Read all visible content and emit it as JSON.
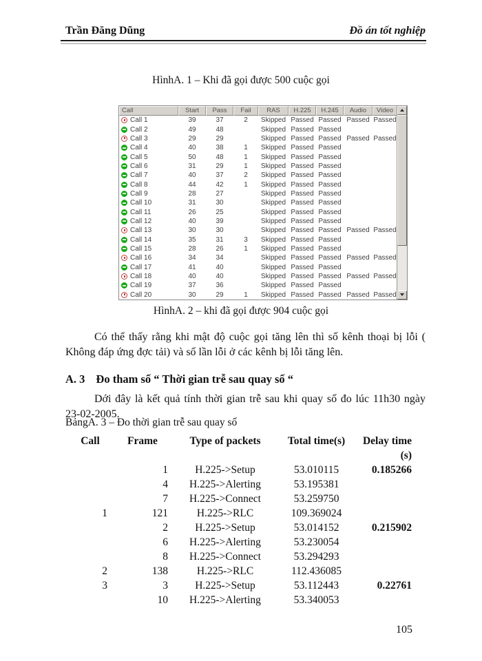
{
  "header": {
    "author": "Trần Đăng Dũng",
    "title": "Đồ án tốt nghiệp"
  },
  "figure1_caption": "HìnhA. 1 – Khi đã gọi được 500 cuộc gọi",
  "figure2_caption": "HìnhA. 2 – khi đã gọi được 904 cuộc gọi",
  "call_table": {
    "columns": [
      "Call",
      "Start",
      "Pass",
      "Fail",
      "RAS",
      "H.225",
      "H.245",
      "Audio",
      "Video"
    ],
    "rows": [
      {
        "icon": "red-timer",
        "call": "Call 1",
        "start": "39",
        "pass": "37",
        "fail": "2",
        "ras": "Skipped",
        "h225": "Passed",
        "h245": "Passed",
        "audio": "Passed",
        "video": "Passed"
      },
      {
        "icon": "green-status",
        "call": "Call 2",
        "start": "49",
        "pass": "48",
        "fail": "",
        "ras": "Skipped",
        "h225": "Passed",
        "h245": "Passed",
        "audio": "",
        "video": ""
      },
      {
        "icon": "red-timer",
        "call": "Call 3",
        "start": "29",
        "pass": "29",
        "fail": "",
        "ras": "Skipped",
        "h225": "Passed",
        "h245": "Passed",
        "audio": "Passed",
        "video": "Passed"
      },
      {
        "icon": "green-status",
        "call": "Call 4",
        "start": "40",
        "pass": "38",
        "fail": "1",
        "ras": "Skipped",
        "h225": "Passed",
        "h245": "Passed",
        "audio": "",
        "video": ""
      },
      {
        "icon": "green-status",
        "call": "Call 5",
        "start": "50",
        "pass": "48",
        "fail": "1",
        "ras": "Skipped",
        "h225": "Passed",
        "h245": "Passed",
        "audio": "",
        "video": ""
      },
      {
        "icon": "green-status",
        "call": "Call 6",
        "start": "31",
        "pass": "29",
        "fail": "1",
        "ras": "Skipped",
        "h225": "Passed",
        "h245": "Passed",
        "audio": "",
        "video": ""
      },
      {
        "icon": "green-status",
        "call": "Call 7",
        "start": "40",
        "pass": "37",
        "fail": "2",
        "ras": "Skipped",
        "h225": "Passed",
        "h245": "Passed",
        "audio": "",
        "video": ""
      },
      {
        "icon": "green-status",
        "call": "Call 8",
        "start": "44",
        "pass": "42",
        "fail": "1",
        "ras": "Skipped",
        "h225": "Passed",
        "h245": "Passed",
        "audio": "",
        "video": ""
      },
      {
        "icon": "green-status",
        "call": "Call 9",
        "start": "28",
        "pass": "27",
        "fail": "",
        "ras": "Skipped",
        "h225": "Passed",
        "h245": "Passed",
        "audio": "",
        "video": ""
      },
      {
        "icon": "green-status",
        "call": "Call 10",
        "start": "31",
        "pass": "30",
        "fail": "",
        "ras": "Skipped",
        "h225": "Passed",
        "h245": "Passed",
        "audio": "",
        "video": ""
      },
      {
        "icon": "green-status",
        "call": "Call 11",
        "start": "26",
        "pass": "25",
        "fail": "",
        "ras": "Skipped",
        "h225": "Passed",
        "h245": "Passed",
        "audio": "",
        "video": ""
      },
      {
        "icon": "green-status",
        "call": "Call 12",
        "start": "40",
        "pass": "39",
        "fail": "",
        "ras": "Skipped",
        "h225": "Passed",
        "h245": "Passed",
        "audio": "",
        "video": ""
      },
      {
        "icon": "red-timer",
        "call": "Call 13",
        "start": "30",
        "pass": "30",
        "fail": "",
        "ras": "Skipped",
        "h225": "Passed",
        "h245": "Passed",
        "audio": "Passed",
        "video": "Passed"
      },
      {
        "icon": "green-status",
        "call": "Call 14",
        "start": "35",
        "pass": "31",
        "fail": "3",
        "ras": "Skipped",
        "h225": "Passed",
        "h245": "Passed",
        "audio": "",
        "video": ""
      },
      {
        "icon": "green-status",
        "call": "Call 15",
        "start": "28",
        "pass": "26",
        "fail": "1",
        "ras": "Skipped",
        "h225": "Passed",
        "h245": "Passed",
        "audio": "",
        "video": ""
      },
      {
        "icon": "red-timer",
        "call": "Call 16",
        "start": "34",
        "pass": "34",
        "fail": "",
        "ras": "Skipped",
        "h225": "Passed",
        "h245": "Passed",
        "audio": "Passed",
        "video": "Passed"
      },
      {
        "icon": "green-status",
        "call": "Call 17",
        "start": "41",
        "pass": "40",
        "fail": "",
        "ras": "Skipped",
        "h225": "Passed",
        "h245": "Passed",
        "audio": "",
        "video": ""
      },
      {
        "icon": "red-timer",
        "call": "Call 18",
        "start": "40",
        "pass": "40",
        "fail": "",
        "ras": "Skipped",
        "h225": "Passed",
        "h245": "Passed",
        "audio": "Passed",
        "video": "Passed"
      },
      {
        "icon": "green-status",
        "call": "Call 19",
        "start": "37",
        "pass": "36",
        "fail": "",
        "ras": "Skipped",
        "h225": "Passed",
        "h245": "Passed",
        "audio": "",
        "video": ""
      },
      {
        "icon": "red-timer",
        "call": "Call 20",
        "start": "30",
        "pass": "29",
        "fail": "1",
        "ras": "Skipped",
        "h225": "Passed",
        "h245": "Passed",
        "audio": "Passed",
        "video": "Passed"
      }
    ]
  },
  "paragraph1": {
    "line1": "Có thể thấy rằng khi mật độ cuộc gọi tăng lên thì số kênh thoại bị lỗi (",
    "line2": "Không đáp ứng đợc  tải) và số lần lỗi ở các kênh bị lỗi tăng lên."
  },
  "section_a3": {
    "number": "A. 3",
    "title": "Đo tham số “ Thời gian trễ sau quay số “",
    "para_line1": "Dới  đây là kết quả tính thời gian trễ sau khi quay số đo lúc 11h30 ngày",
    "para_line2": "23-02-2005.",
    "table_caption": "BảngA. 3 – Đo thời gian trễ sau quay số"
  },
  "delay_table": {
    "columns": [
      "Call",
      "Frame",
      "Type of packets",
      "Total time(s)",
      "Delay time (s)"
    ],
    "rows": [
      {
        "call": "",
        "frame": "1",
        "type": "H.225->Setup",
        "total": "53.010115",
        "delay": "0.185266"
      },
      {
        "call": "",
        "frame": "4",
        "type": "H.225->Alerting",
        "total": "53.195381",
        "delay": ""
      },
      {
        "call": "",
        "frame": "7",
        "type": "H.225->Connect",
        "total": "53.259750",
        "delay": ""
      },
      {
        "call": "1",
        "frame": "121",
        "type": "H.225->RLC",
        "total": "109.369024",
        "delay": ""
      },
      {
        "call": "",
        "frame": "2",
        "type": "H.225->Setup",
        "total": "53.014152",
        "delay": "0.215902"
      },
      {
        "call": "",
        "frame": "6",
        "type": "H.225->Alerting",
        "total": "53.230054",
        "delay": ""
      },
      {
        "call": "",
        "frame": "8",
        "type": "H.225->Connect",
        "total": "53.294293",
        "delay": ""
      },
      {
        "call": "2",
        "frame": "138",
        "type": "H.225->RLC",
        "total": "112.436085",
        "delay": ""
      },
      {
        "call": "3",
        "frame": "3",
        "type": "H.225->Setup",
        "total": "53.112443",
        "delay": "0.22761"
      },
      {
        "call": "",
        "frame": "10",
        "type": "H.225->Alerting",
        "total": "53.340053",
        "delay": ""
      }
    ]
  },
  "page_number": "105",
  "colors": {
    "status_green": "#18a818",
    "status_red": "#c03a3a",
    "window_face": "#d6d3ce"
  }
}
